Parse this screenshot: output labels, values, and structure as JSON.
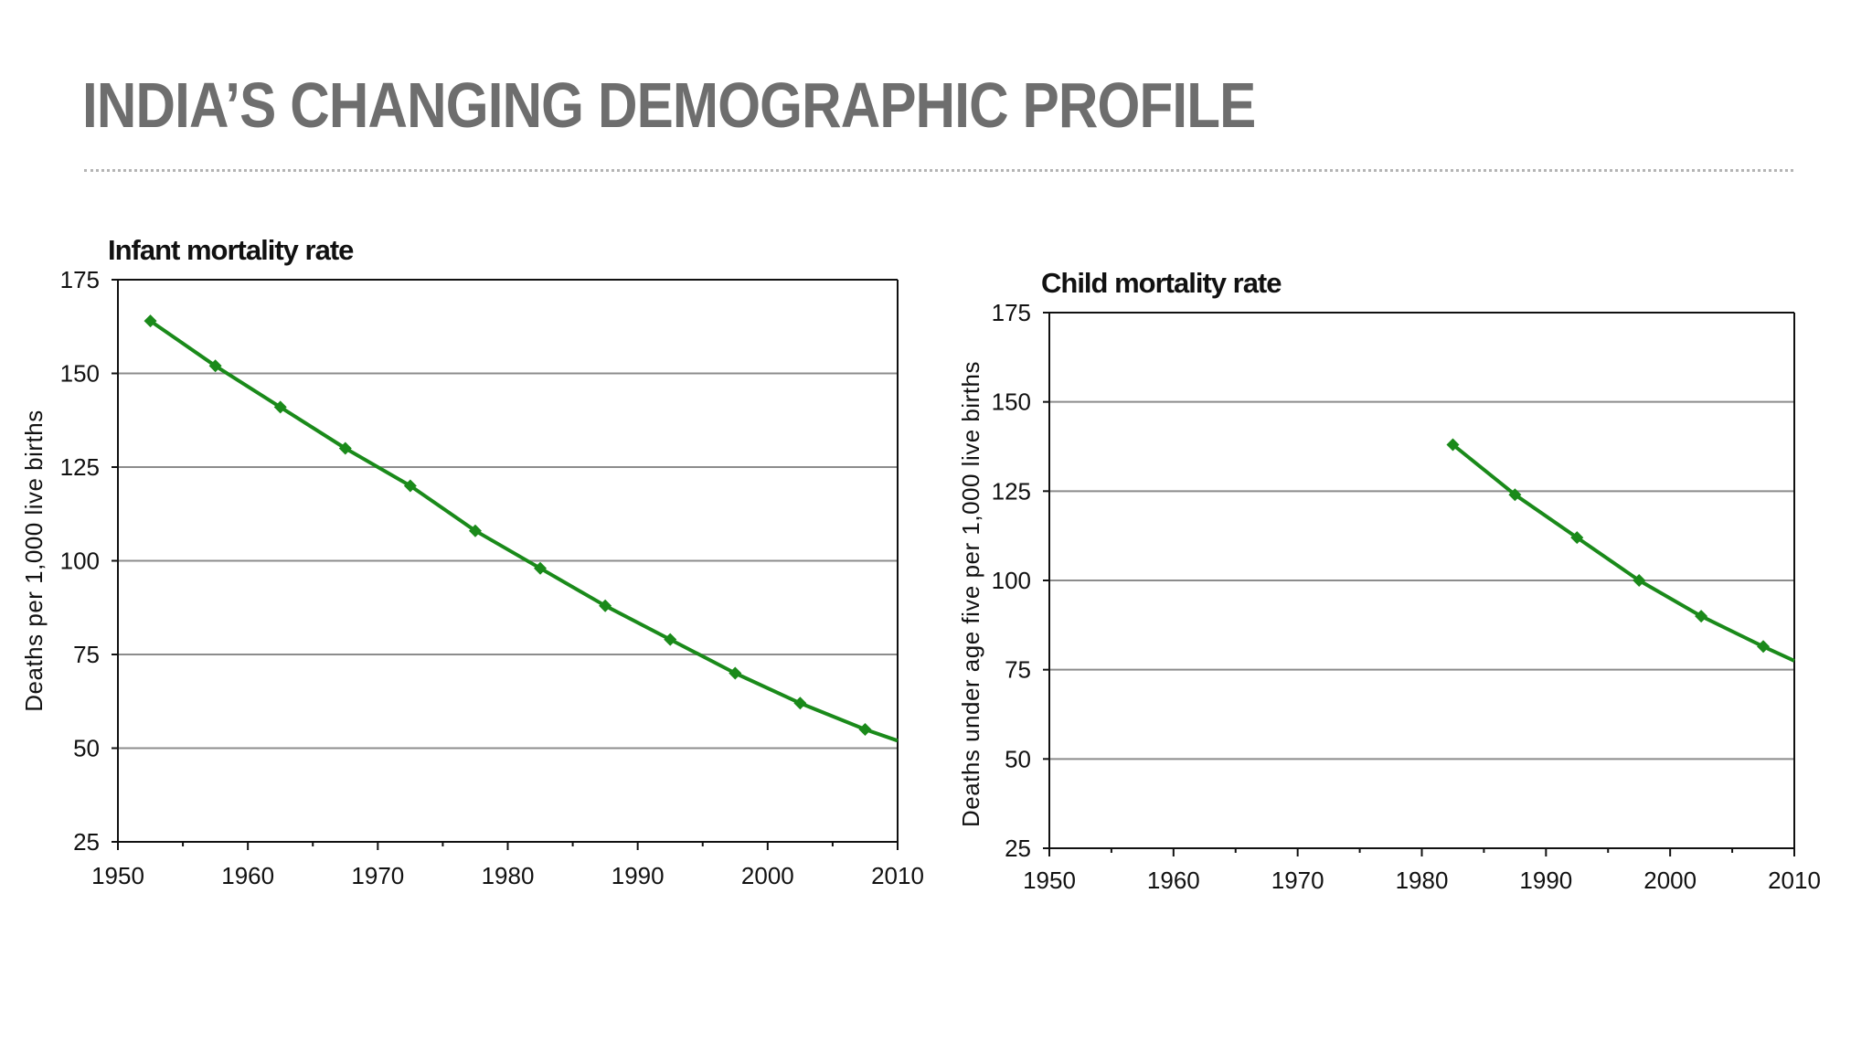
{
  "slide": {
    "title": "INDIA’S CHANGING DEMOGRAPHIC PROFILE"
  },
  "colors": {
    "title": "#6e6e6e",
    "series": "#1a8a1a",
    "grid": "#8c8c8c",
    "axis": "#111111",
    "rule": "#b4b4b4"
  },
  "chart_data": [
    {
      "type": "line",
      "title": "Infant mortality rate",
      "xlabel": "",
      "ylabel": "Deaths per 1,000 live births",
      "xlim": [
        1950,
        2010
      ],
      "ylim": [
        25,
        175
      ],
      "x_ticks": [
        1950,
        1960,
        1970,
        1980,
        1990,
        2000,
        2010
      ],
      "y_ticks": [
        25,
        50,
        75,
        100,
        125,
        150,
        175
      ],
      "grid": "horizontal",
      "legend": "none",
      "marker": "diamond",
      "series": [
        {
          "x": [
            1952.5,
            1957.5,
            1962.5,
            1967.5,
            1972.5,
            1977.5,
            1982.5,
            1987.5,
            1992.5,
            1997.5,
            2002.5,
            2007.5,
            2010
          ],
          "y": [
            164,
            152,
            141,
            130,
            120,
            108,
            98,
            88,
            79,
            70,
            62,
            55,
            52
          ],
          "markers": [
            true,
            true,
            true,
            true,
            true,
            true,
            true,
            true,
            true,
            true,
            true,
            true,
            false
          ]
        }
      ]
    },
    {
      "type": "line",
      "title": "Child mortality rate",
      "xlabel": "",
      "ylabel": "Deaths under age five per 1,000 live births",
      "xlim": [
        1950,
        2010
      ],
      "ylim": [
        25,
        175
      ],
      "x_ticks": [
        1950,
        1960,
        1970,
        1980,
        1990,
        2000,
        2010
      ],
      "y_ticks": [
        25,
        50,
        75,
        100,
        125,
        150,
        175
      ],
      "grid": "horizontal",
      "legend": "none",
      "marker": "diamond",
      "series": [
        {
          "x": [
            1982.5,
            1987.5,
            1992.5,
            1997.5,
            2002.5,
            2007.5,
            2010
          ],
          "y": [
            138,
            124,
            112,
            100,
            90,
            81.5,
            77.5
          ],
          "markers": [
            true,
            true,
            true,
            true,
            true,
            true,
            false
          ]
        }
      ]
    }
  ]
}
